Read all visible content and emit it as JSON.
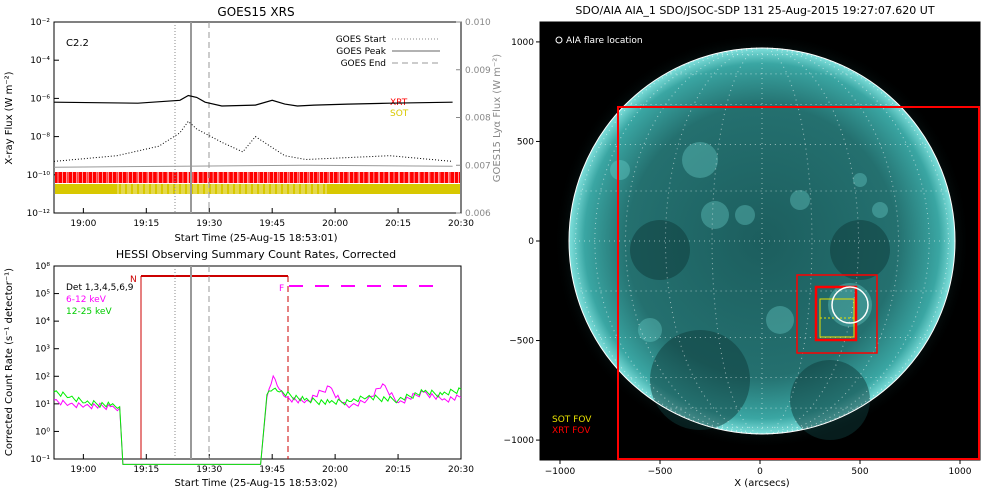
{
  "goes_panel": {
    "title": "GOES15 XRS",
    "ylabel_left": "X-ray Flux (W m⁻²)",
    "ylabel_right": "GOES15 Lyα Flux (W m⁻²)",
    "xlabel": "Start Time (25-Aug-15 18:53:01)",
    "flare_class": "C2.2",
    "legend": [
      "GOES Start",
      "GOES Peak",
      "GOES End"
    ],
    "coverage_labels": [
      "XRT",
      "SOT"
    ],
    "colors": {
      "xrt": "#ff0000",
      "sot": "#d8c800"
    }
  },
  "hessi_panel": {
    "title": "HESSI Observing Summary Count Rates, Corrected",
    "ylabel": "Corrected Count Rate (s⁻¹ detector⁻¹)",
    "xlabel": "Start Time (25-Aug-15 18:53:02)",
    "legend": [
      "Det 1,3,4,5,6,9",
      "6-12 keV",
      "12-25 keV"
    ],
    "markers": {
      "night": "N",
      "flare": "F"
    },
    "colors": {
      "6_12": "#ff00ff",
      "12_25": "#00ee00",
      "night": "#cc0000",
      "flag": "#ff00ff"
    }
  },
  "sun_panel": {
    "title": "SDO/AIA AIA_1 SDO/JSOC-SDP 131 25-Aug-2015 19:27:07.620 UT",
    "legend_flare": "AIA flare location",
    "fov_labels": [
      "SOT FOV",
      "XRT FOV"
    ],
    "xlabel": "X (arcsecs)",
    "colors": {
      "sot": "#e8e000",
      "xrt": "#ff0000",
      "disk": "#2a8f8f"
    }
  },
  "chart_data": [
    {
      "type": "line",
      "panel": "goes",
      "x_ticks": [
        "19:00",
        "19:15",
        "19:30",
        "19:45",
        "20:00",
        "20:15",
        "20:30"
      ],
      "y_ticks_left": [
        "10⁻²",
        "10⁻⁴",
        "10⁻⁶",
        "10⁻⁸",
        "10⁻¹⁰",
        "10⁻¹²"
      ],
      "y_ticks_right": [
        "0.010",
        "0.009",
        "0.008",
        "0.007",
        "0.006"
      ],
      "ylim_left": [
        1e-12,
        0.01
      ],
      "ylim_right": [
        0.006,
        0.01
      ],
      "yscale_left": "log",
      "events": {
        "start": "19:24",
        "peak": "19:27",
        "end": "19:31"
      },
      "series": [
        {
          "name": "",
          "style": "solid-black",
          "x_min": [
            0,
            20,
            30,
            32,
            34,
            36,
            40,
            48,
            52,
            55,
            58,
            62,
            70,
            80,
            95
          ],
          "y_log": [
            -6.2,
            -6.25,
            -6.1,
            -5.85,
            -5.95,
            -6.2,
            -6.4,
            -6.35,
            -6.1,
            -6.3,
            -6.4,
            -6.35,
            -6.3,
            -6.25,
            -6.2
          ]
        },
        {
          "name": "",
          "style": "dotted-black",
          "x_min": [
            0,
            15,
            25,
            30,
            32,
            34,
            40,
            45,
            48,
            55,
            60,
            70,
            80,
            95
          ],
          "y_log": [
            -9.3,
            -9.0,
            -8.5,
            -7.8,
            -7.2,
            -7.6,
            -8.3,
            -8.8,
            -8.0,
            -9.0,
            -9.2,
            -9.1,
            -9.0,
            -9.3
          ]
        },
        {
          "name": "",
          "style": "solid-gray",
          "x_min": [
            0,
            30,
            60,
            95
          ],
          "y_log": [
            -9.6,
            -9.55,
            -9.5,
            -9.55
          ]
        }
      ]
    },
    {
      "type": "line",
      "panel": "hessi",
      "x_ticks": [
        "19:00",
        "19:15",
        "19:30",
        "19:45",
        "20:00",
        "20:15",
        "20:30"
      ],
      "y_ticks": [
        "10⁸",
        "10⁵",
        "10⁴",
        "10³",
        "10²",
        "10¹",
        "10⁰",
        "10⁻¹"
      ],
      "ylim": [
        0.1,
        1000000.0
      ],
      "yscale": "log",
      "series": [
        {
          "name": "6-12 keV",
          "x_min": [
            0,
            5,
            10,
            18,
            21,
            22,
            66,
            68,
            70,
            72,
            74,
            80,
            88,
            92,
            95,
            100,
            105,
            110,
            118,
            124,
            130
          ],
          "y_log": [
            1.2,
            1.05,
            1.0,
            0.95,
            0.9,
            -1.2,
            -1.2,
            1.3,
            2.1,
            1.6,
            1.3,
            1.1,
            1.7,
            1.1,
            1.0,
            1.2,
            1.8,
            1.1,
            1.5,
            1.2,
            1.3
          ]
        },
        {
          "name": "12-25 keV",
          "x_min": [
            0,
            5,
            10,
            18,
            21,
            22,
            66,
            68,
            70,
            72,
            80,
            88,
            95,
            100,
            110,
            118,
            124,
            130
          ],
          "y_log": [
            1.5,
            1.3,
            1.1,
            1.0,
            0.95,
            -1.2,
            -1.2,
            1.4,
            1.6,
            1.5,
            1.2,
            1.1,
            1.15,
            1.3,
            1.2,
            1.5,
            1.4,
            1.6
          ]
        }
      ]
    },
    {
      "type": "scatter",
      "panel": "sun",
      "x_ticks": [
        "−1000",
        "−500",
        "0",
        "500",
        "1000"
      ],
      "y_ticks": [
        "1000",
        "500",
        "0",
        "−500",
        "−1000"
      ],
      "xlim": [
        -1100,
        1100
      ],
      "ylim": [
        -1100,
        1100
      ],
      "xrt_fov": {
        "x": [
          -720,
          1100
        ],
        "y": [
          -1100,
          660
        ]
      },
      "sot_fov": {
        "x": [
          280,
          500
        ],
        "y": [
          -270,
          -500
        ]
      },
      "flare_location": {
        "x": 500,
        "y": -330
      }
    }
  ]
}
